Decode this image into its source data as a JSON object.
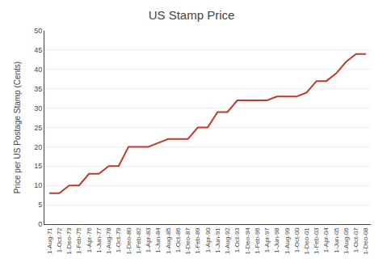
{
  "chart_data": {
    "type": "line",
    "title": "US Stamp Price",
    "ylabel": "Price per US Postage Stamp (Cents)",
    "categories": [
      "1-Aug-71",
      "1-Oct-72",
      "1-Deo-73",
      "1-Feb-75",
      "1-Apr-76",
      "1-Jun-77",
      "1-Aug-78",
      "1-Oct-79",
      "1-Deo-80",
      "1-Feb-82",
      "1-Apr-83",
      "1-Jun-84",
      "1-Aug-85",
      "1-Oct-86",
      "1-Deo-87",
      "1-Feb-89",
      "1-Apr-90",
      "1-Jun-91",
      "1-Aug-92",
      "1-Oct-93",
      "1-Deo-94",
      "1-Feb-96",
      "1-Apr-97",
      "1-Jun-98",
      "1-Aug-99",
      "1-Oct-00",
      "1-Deo-01",
      "1-Feb-03",
      "1-Apr-04",
      "1-Jun-05",
      "1-Aug-06",
      "1-Oct-07",
      "1-Deo-08"
    ],
    "values": [
      8,
      8,
      10,
      10,
      13,
      13,
      15,
      15,
      20,
      20,
      20,
      21,
      22,
      22,
      22,
      25,
      25,
      29,
      29,
      32,
      32,
      32,
      32,
      33,
      33,
      33,
      34,
      37,
      37,
      39,
      42,
      44,
      44
    ],
    "color": "#c0392b",
    "ylim": [
      0,
      50
    ],
    "yticks": [
      0,
      5,
      10,
      15,
      20,
      25,
      30,
      35,
      40,
      45,
      50
    ],
    "grid": true
  }
}
